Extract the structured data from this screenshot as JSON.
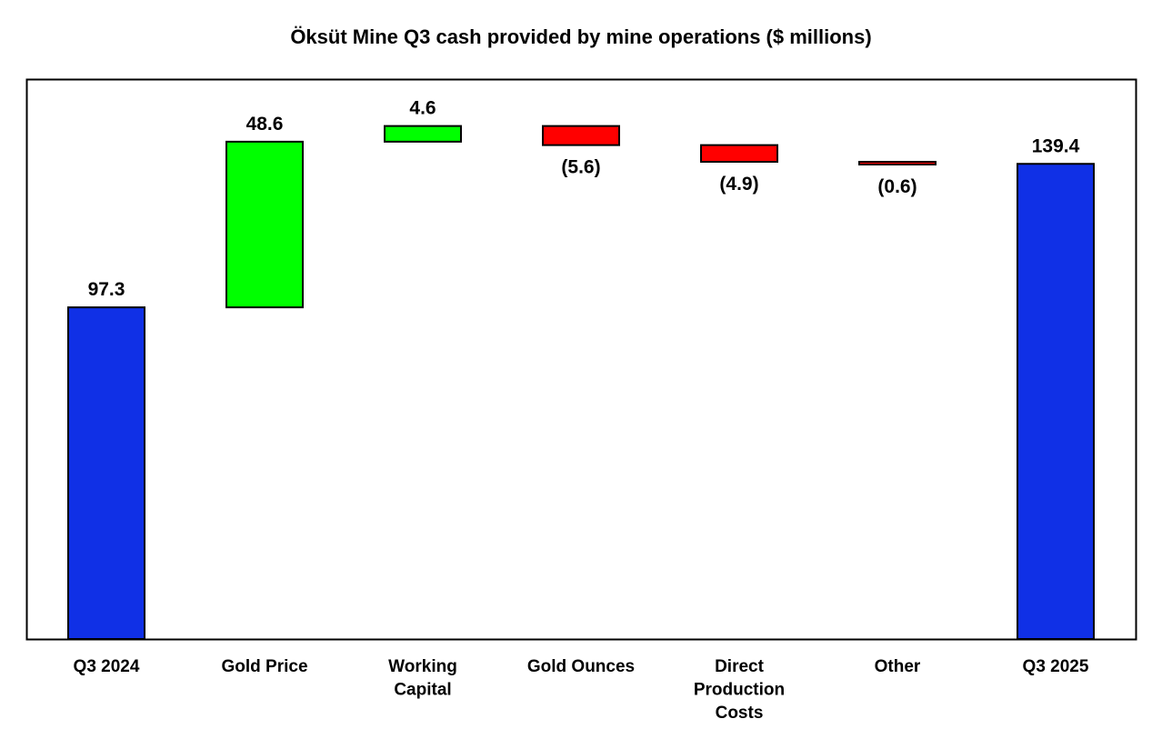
{
  "chart_data": {
    "type": "bar",
    "subtype": "waterfall",
    "title": "Öksüt Mine Q3 cash provided by mine operations ($ millions)",
    "xlabel": "",
    "ylabel": "",
    "ylim": [
      0,
      164
    ],
    "grid": false,
    "legend": "none",
    "categories": [
      [
        "Q3 2024"
      ],
      [
        "Gold Price"
      ],
      [
        "Working",
        "Capital"
      ],
      [
        "Gold Ounces"
      ],
      [
        "Direct",
        "Production",
        "Costs"
      ],
      [
        "Other"
      ],
      [
        "Q3 2025"
      ]
    ],
    "steps": [
      {
        "kind": "total",
        "value": 97.3,
        "label": "97.3"
      },
      {
        "kind": "delta",
        "value": 48.6,
        "label": "48.6"
      },
      {
        "kind": "delta",
        "value": 4.6,
        "label": "4.6"
      },
      {
        "kind": "delta",
        "value": -5.6,
        "label": "(5.6)"
      },
      {
        "kind": "delta",
        "value": -4.9,
        "label": "(4.9)"
      },
      {
        "kind": "delta",
        "value": -0.6,
        "label": "(0.6)"
      },
      {
        "kind": "total",
        "value": 139.4,
        "label": "139.4"
      }
    ],
    "colors": {
      "total": "#1030e6",
      "increase": "#00ff00",
      "decrease": "#ff0000",
      "outline": "#000000"
    }
  }
}
